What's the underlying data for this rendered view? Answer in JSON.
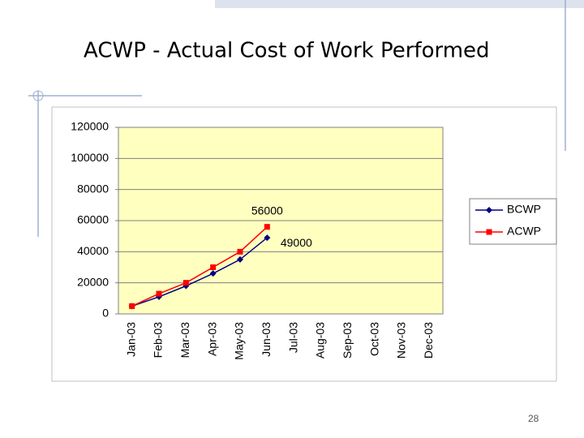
{
  "chart_data": {
    "type": "line",
    "title": "ACWP - Actual Cost of Work Performed",
    "page_number": "28",
    "categories": [
      "Jan-03",
      "Feb-03",
      "Mar-03",
      "Apr-03",
      "May-03",
      "Jun-03",
      "Jul-03",
      "Aug-03",
      "Sep-03",
      "Oct-03",
      "Nov-03",
      "Dec-03"
    ],
    "series": [
      {
        "name": "BCWP",
        "color": "#000080",
        "marker": "diamond",
        "label_at": 5,
        "values": [
          5000,
          11000,
          18000,
          26000,
          35000,
          49000,
          null,
          null,
          null,
          null,
          null,
          null
        ]
      },
      {
        "name": "ACWP",
        "color": "#ff0000",
        "marker": "square",
        "label_at": 5,
        "values": [
          5000,
          13000,
          20000,
          30000,
          40000,
          56000,
          null,
          null,
          null,
          null,
          null,
          null
        ]
      }
    ],
    "ylim": [
      0,
      120000
    ],
    "yticks": [
      0,
      20000,
      40000,
      60000,
      80000,
      100000,
      120000
    ],
    "grid": true,
    "legend": "right"
  }
}
